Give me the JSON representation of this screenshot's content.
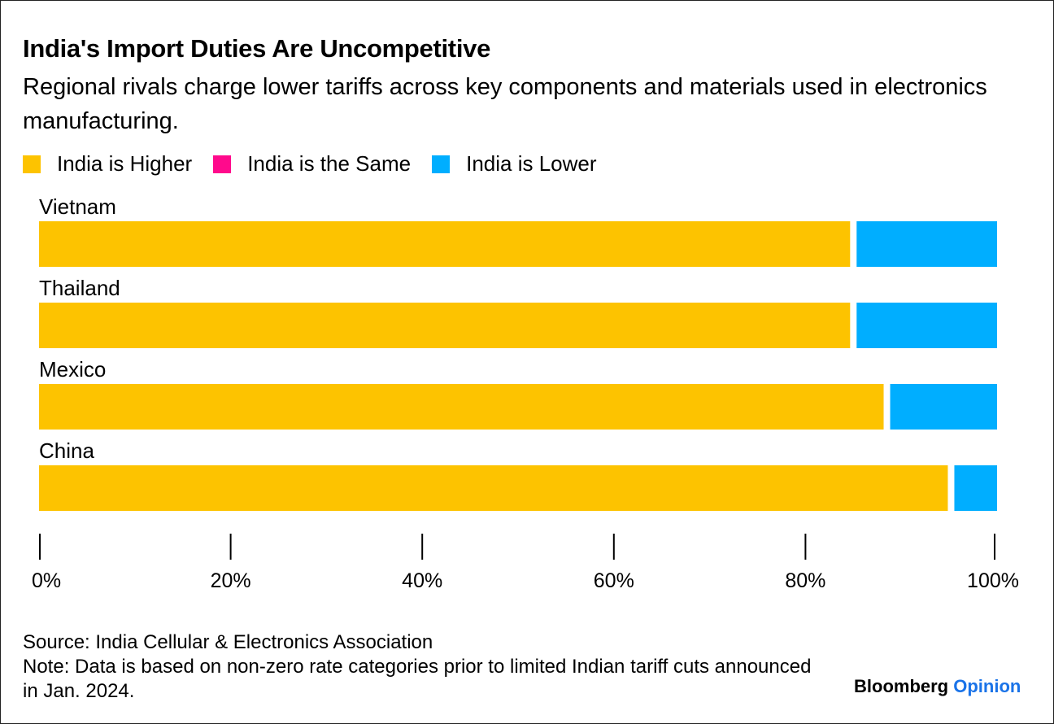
{
  "chart_data": {
    "type": "bar",
    "orientation": "horizontal",
    "stacked": true,
    "title": "India's Import Duties Are Uncompetitive",
    "subtitle": "Regional rivals charge lower tariffs across key components and materials used in electronics manufacturing.",
    "categories": [
      "Vietnam",
      "Thailand",
      "Mexico",
      "China"
    ],
    "series": [
      {
        "name": "India is Higher",
        "color": "#FDC300",
        "values": [
          85,
          85,
          88.5,
          95.2
        ]
      },
      {
        "name": "India is the Same",
        "color": "#FF0A8C",
        "values": [
          0,
          0,
          0,
          0
        ]
      },
      {
        "name": "India is Lower",
        "color": "#00AEFF",
        "values": [
          15,
          15,
          11.5,
          4.8
        ]
      }
    ],
    "xlim": [
      0,
      100
    ],
    "xticks": [
      "0%",
      "20%",
      "40%",
      "60%",
      "80%",
      "100%"
    ],
    "xlabel": "",
    "ylabel": "",
    "legend_position": "top",
    "grid": false
  },
  "footer": {
    "source": "Source: India Cellular & Electronics Association",
    "note": "Note: Data is based on non-zero rate categories prior to limited Indian tariff cuts announced in Jan. 2024."
  },
  "branding": {
    "brand": "Bloomberg",
    "section": "Opinion"
  }
}
